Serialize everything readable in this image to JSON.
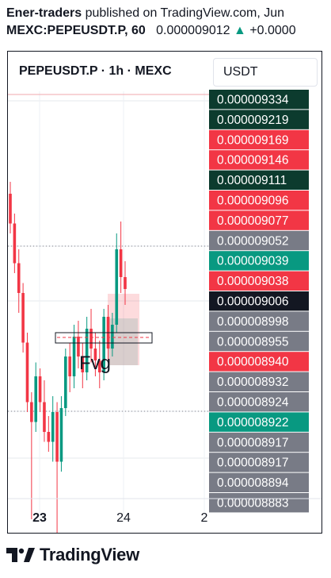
{
  "header": {
    "author": "Ener-traders",
    "published_text": "published on TradingView.com, Jun",
    "symbol_line": "MEXC:PEPEUSDT.P, 60",
    "price": "0.000009012",
    "change": "+0.0000"
  },
  "chart_title": {
    "symbol": "PEPEUSDT.P",
    "sep1": " · ",
    "interval": "1h",
    "sep2": " · ",
    "exchange": "MEXC"
  },
  "currency": "USDT",
  "annotation": "Fvg",
  "footer": {
    "brand": "TradingView"
  },
  "colors": {
    "up": "#089981",
    "down": "#f23645",
    "dark_green": "#0c3b2e",
    "gray": "#787b86",
    "black": "#131722"
  },
  "chart_data": {
    "type": "candlestick",
    "x_ticks": [
      "23",
      "24",
      "2"
    ],
    "y_axis_labels": [
      {
        "value": "0.000009334",
        "style": "dark_green"
      },
      {
        "value": "0.000009219",
        "style": "dark_green"
      },
      {
        "value": "0.000009169",
        "style": "down"
      },
      {
        "value": "0.000009146",
        "style": "down"
      },
      {
        "value": "0.000009111",
        "style": "dark_green"
      },
      {
        "value": "0.000009096",
        "style": "down"
      },
      {
        "value": "0.000009077",
        "style": "down"
      },
      {
        "value": "0.000009052",
        "style": "gray"
      },
      {
        "value": "0.000009039",
        "style": "up"
      },
      {
        "value": "0.000009038",
        "style": "down"
      },
      {
        "value": "0.000009006",
        "style": "black"
      },
      {
        "value": "0.000008998",
        "style": "gray"
      },
      {
        "value": "0.000008955",
        "style": "gray"
      },
      {
        "value": "0.000008940",
        "style": "down"
      },
      {
        "value": "0.000008932",
        "style": "gray"
      },
      {
        "value": "0.000008924",
        "style": "gray"
      },
      {
        "value": "0.000008922",
        "style": "up"
      },
      {
        "value": "0.000008917",
        "style": "gray"
      },
      {
        "value": "0.000008917",
        "style": "gray"
      },
      {
        "value": "0.000008894",
        "style": "gray"
      },
      {
        "value": "0.000008883",
        "style": "gray"
      }
    ],
    "current_price": "0.000009006",
    "position": {
      "type": "long",
      "entry": 9.006e-06,
      "target": 9.334e-06,
      "stop": 8.94e-06
    },
    "candles": [
      {
        "o": 9060,
        "h": 9066,
        "l": 9040,
        "c": 9045
      },
      {
        "o": 9045,
        "h": 9050,
        "l": 9020,
        "c": 9025
      },
      {
        "o": 9025,
        "h": 9032,
        "l": 9000,
        "c": 9010
      },
      {
        "o": 9010,
        "h": 9015,
        "l": 8980,
        "c": 8985
      },
      {
        "o": 8985,
        "h": 8990,
        "l": 8950,
        "c": 8955
      },
      {
        "o": 8955,
        "h": 8960,
        "l": 8896,
        "c": 8945
      },
      {
        "o": 8945,
        "h": 8975,
        "l": 8940,
        "c": 8968
      },
      {
        "o": 8968,
        "h": 8972,
        "l": 8950,
        "c": 8955
      },
      {
        "o": 8955,
        "h": 8966,
        "l": 8935,
        "c": 8940
      },
      {
        "o": 8940,
        "h": 8948,
        "l": 8930,
        "c": 8935
      },
      {
        "o": 8935,
        "h": 8958,
        "l": 8925,
        "c": 8950
      },
      {
        "o": 8950,
        "h": 8955,
        "l": 8870,
        "c": 8925
      },
      {
        "o": 8925,
        "h": 8958,
        "l": 8920,
        "c": 8952
      },
      {
        "o": 8952,
        "h": 8982,
        "l": 8948,
        "c": 8978
      },
      {
        "o": 8978,
        "h": 8985,
        "l": 8960,
        "c": 8968
      },
      {
        "o": 8968,
        "h": 8994,
        "l": 8962,
        "c": 8988
      },
      {
        "o": 8988,
        "h": 8996,
        "l": 8972,
        "c": 8978
      },
      {
        "o": 8978,
        "h": 8985,
        "l": 8962,
        "c": 8970
      },
      {
        "o": 8970,
        "h": 8998,
        "l": 8966,
        "c": 8992
      },
      {
        "o": 8992,
        "h": 9002,
        "l": 8975,
        "c": 8982
      },
      {
        "o": 8982,
        "h": 8990,
        "l": 8968,
        "c": 8976
      },
      {
        "o": 8976,
        "h": 8986,
        "l": 8962,
        "c": 8970
      },
      {
        "o": 8970,
        "h": 9002,
        "l": 8966,
        "c": 8998
      },
      {
        "o": 8998,
        "h": 9004,
        "l": 8976,
        "c": 8982
      },
      {
        "o": 8982,
        "h": 9000,
        "l": 8978,
        "c": 8994
      },
      {
        "o": 8994,
        "h": 9040,
        "l": 8990,
        "c": 9032
      },
      {
        "o": 9032,
        "h": 9046,
        "l": 9010,
        "c": 9018
      },
      {
        "o": 9018,
        "h": 9026,
        "l": 9004,
        "c": 9012
      }
    ]
  }
}
